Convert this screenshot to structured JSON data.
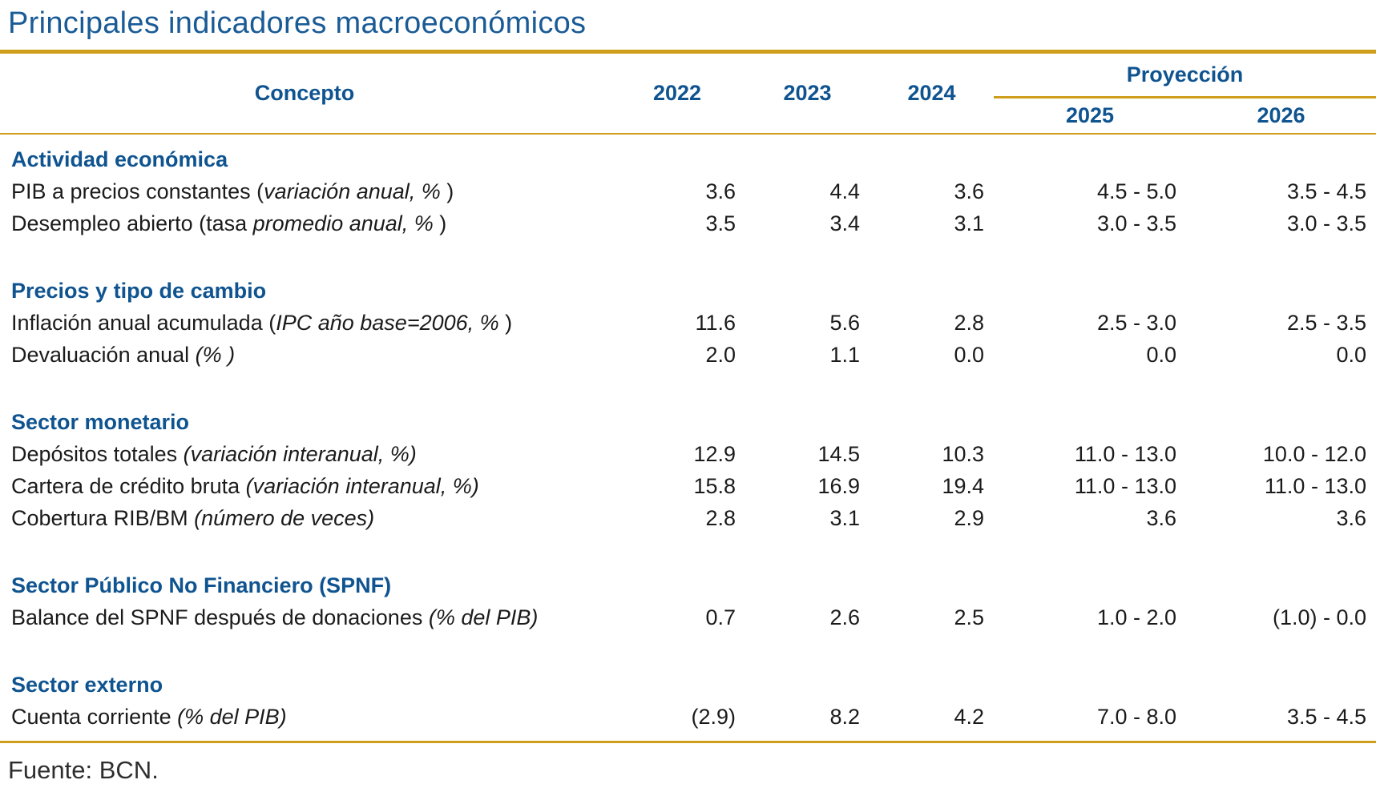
{
  "title": "Principales indicadores macroeconómicos",
  "source": "Fuente: BCN.",
  "colors": {
    "title_blue": "#1A5B96",
    "header_blue": "#0F5490",
    "gold_rule": "#CF9E1C",
    "body_text": "#1B1B1B"
  },
  "table": {
    "concepto_header": "Concepto",
    "year_headers": [
      "2022",
      "2023",
      "2024"
    ],
    "projection_header": "Proyección",
    "projection_years": [
      "2025",
      "2026"
    ],
    "sections": [
      {
        "name": "Actividad económica",
        "rows": [
          {
            "pre": "PIB a precios constantes (",
            "unit": "variación anual, %",
            "post": " )",
            "values": [
              "3.6",
              "4.4",
              "3.6",
              "4.5 - 5.0",
              "3.5 - 4.5"
            ]
          },
          {
            "pre": "Desempleo abierto (tasa ",
            "unit": "promedio anual, %",
            "post": " )",
            "values": [
              "3.5",
              "3.4",
              "3.1",
              "3.0 - 3.5",
              "3.0 - 3.5"
            ]
          }
        ]
      },
      {
        "name": "Precios y tipo de cambio",
        "rows": [
          {
            "pre": "Inflación anual acumulada (",
            "unit": "IPC año base=2006, %",
            "post": " )",
            "values": [
              "11.6",
              "5.6",
              "2.8",
              "2.5 - 3.0",
              "2.5 - 3.5"
            ]
          },
          {
            "pre": "Devaluación anual ",
            "unit": "(% )",
            "post": "",
            "values": [
              "2.0",
              "1.1",
              "0.0",
              "0.0",
              "0.0"
            ]
          }
        ]
      },
      {
        "name": "Sector monetario",
        "rows": [
          {
            "pre": "Depósitos totales ",
            "unit": "(variación interanual, %)",
            "post": "",
            "values": [
              "12.9",
              "14.5",
              "10.3",
              "11.0 - 13.0",
              "10.0 - 12.0"
            ]
          },
          {
            "pre": "Cartera de crédito bruta ",
            "unit": "(variación interanual, %)",
            "post": "",
            "values": [
              "15.8",
              "16.9",
              "19.4",
              "11.0 - 13.0",
              "11.0 - 13.0"
            ]
          },
          {
            "pre": "Cobertura RIB/BM ",
            "unit": "(número de veces)",
            "post": "",
            "values": [
              "2.8",
              "3.1",
              "2.9",
              "3.6",
              "3.6"
            ]
          }
        ]
      },
      {
        "name": "Sector Público No Financiero (SPNF)",
        "rows": [
          {
            "pre": "Balance del SPNF después de donaciones ",
            "unit": "(% del PIB)",
            "post": "",
            "values": [
              "0.7",
              "2.6",
              "2.5",
              "1.0 - 2.0",
              "(1.0) - 0.0"
            ]
          }
        ]
      },
      {
        "name": "Sector externo",
        "rows": [
          {
            "pre": "Cuenta corriente ",
            "unit": "(% del PIB)",
            "post": "",
            "values": [
              "(2.9)",
              "8.2",
              "4.2",
              "7.0 - 8.0",
              "3.5 - 4.5"
            ]
          }
        ]
      }
    ]
  }
}
